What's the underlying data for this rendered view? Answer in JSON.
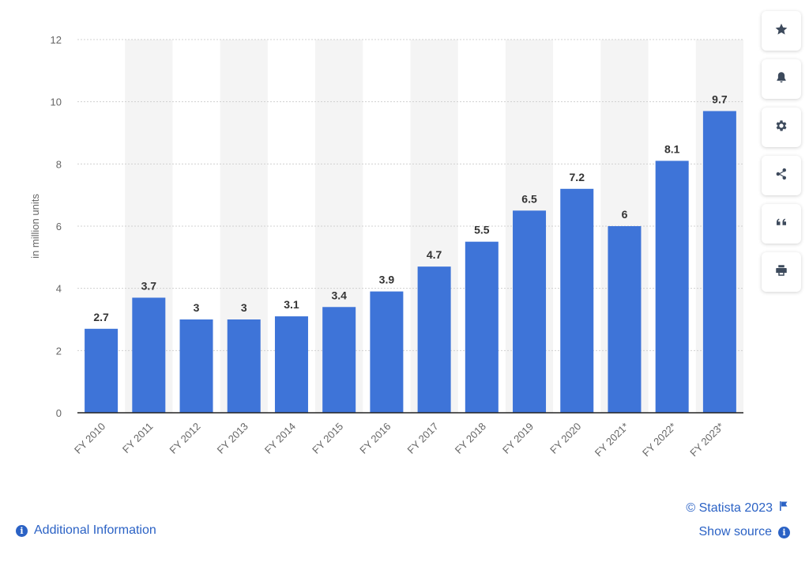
{
  "chart_data": {
    "type": "bar",
    "categories": [
      "FY 2010",
      "FY 2011",
      "FY 2012",
      "FY 2013",
      "FY 2014",
      "FY 2015",
      "FY 2016",
      "FY 2017",
      "FY 2018",
      "FY 2019",
      "FY 2020",
      "FY 2021*",
      "FY 2022*",
      "FY 2023*"
    ],
    "values": [
      2.7,
      3.7,
      3,
      3,
      3.1,
      3.4,
      3.9,
      4.7,
      5.5,
      6.5,
      7.2,
      6,
      8.1,
      9.7
    ],
    "value_labels": [
      "2.7",
      "3.7",
      "3",
      "3",
      "3.1",
      "3.4",
      "3.9",
      "4.7",
      "5.5",
      "6.5",
      "7.2",
      "6",
      "8.1",
      "9.7"
    ],
    "ylabel": "in million units",
    "xlabel": "",
    "ylim": [
      0,
      12
    ],
    "yticks": [
      0,
      2,
      4,
      6,
      8,
      10,
      12
    ],
    "grid": true,
    "bar_color": "#3e74d8"
  },
  "toolbar": {
    "buttons": [
      {
        "name": "star-icon"
      },
      {
        "name": "bell-icon"
      },
      {
        "name": "gear-icon"
      },
      {
        "name": "share-icon"
      },
      {
        "name": "quote-icon"
      },
      {
        "name": "print-icon"
      }
    ]
  },
  "footer": {
    "additional_info": "Additional Information",
    "credit": "© Statista 2023",
    "show_source": "Show source"
  },
  "colors": {
    "accent": "#2b62c5",
    "stripe": "#f4f4f4",
    "grid": "#d0d0d0"
  }
}
